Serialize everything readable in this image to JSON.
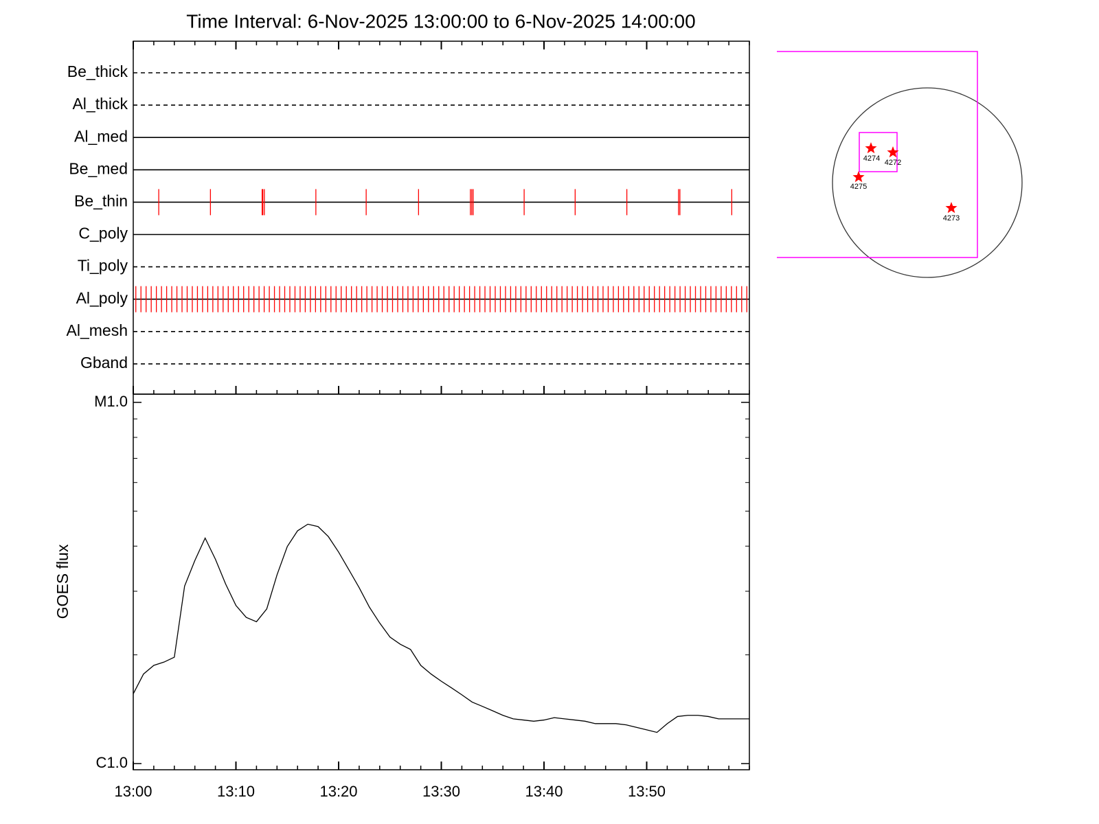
{
  "chart_data": [
    {
      "type": "event",
      "title": "Time Interval:  6-Nov-2025 13:00:00 to  6-Nov-2025 14:00:00",
      "categories": [
        "Be_thick",
        "Al_thick",
        "Al_med",
        "Be_med",
        "Be_thin",
        "C_poly",
        "Ti_poly",
        "Al_poly",
        "Al_mesh",
        "Gband"
      ],
      "line_styles": [
        "dashed",
        "dashed",
        "solid",
        "solid",
        "solid",
        "solid",
        "dashed",
        "solid",
        "dashed",
        "dashed"
      ],
      "color": "#ff0000",
      "xlim": [
        "13:00",
        "14:00"
      ],
      "exposures": [
        [],
        [],
        [],
        [],
        [
          "13:02:29",
          "13:07:31",
          "13:12:33",
          "13:12:37",
          "13:12:46",
          "13:17:47",
          "13:22:41",
          "13:27:47",
          "13:32:50",
          "13:32:58",
          "13:33:06",
          "13:38:04",
          "13:43:02",
          "13:48:04",
          "13:53:06",
          "13:53:14",
          "13:58:17"
        ],
        [],
        [],
        [
          "13:00:15",
          "13:00:45",
          "13:01:15",
          "13:01:45",
          "13:02:15",
          "13:02:45",
          "13:03:15",
          "13:03:45",
          "13:04:15",
          "13:04:45",
          "13:05:15",
          "13:05:45",
          "13:06:15",
          "13:06:45",
          "13:07:15",
          "13:07:45",
          "13:08:15",
          "13:08:45",
          "13:09:15",
          "13:09:45",
          "13:10:15",
          "13:10:45",
          "13:11:15",
          "13:11:45",
          "13:12:15",
          "13:12:45",
          "13:13:15",
          "13:13:45",
          "13:14:15",
          "13:14:45",
          "13:15:15",
          "13:15:45",
          "13:16:15",
          "13:16:45",
          "13:17:15",
          "13:17:45",
          "13:18:15",
          "13:18:45",
          "13:19:15",
          "13:19:45",
          "13:20:15",
          "13:20:45",
          "13:21:15",
          "13:21:45",
          "13:22:15",
          "13:22:45",
          "13:23:15",
          "13:23:45",
          "13:24:15",
          "13:24:45",
          "13:25:15",
          "13:25:45",
          "13:26:15",
          "13:26:45",
          "13:27:15",
          "13:27:45",
          "13:28:15",
          "13:28:45",
          "13:29:15",
          "13:29:45",
          "13:30:15",
          "13:30:45",
          "13:31:15",
          "13:31:45",
          "13:32:15",
          "13:32:45",
          "13:33:15",
          "13:33:45",
          "13:34:15",
          "13:34:45",
          "13:35:15",
          "13:35:45",
          "13:36:15",
          "13:36:45",
          "13:37:15",
          "13:37:45",
          "13:38:15",
          "13:38:45",
          "13:39:15",
          "13:39:45",
          "13:40:15",
          "13:40:45",
          "13:41:15",
          "13:41:45",
          "13:42:15",
          "13:42:45",
          "13:43:15",
          "13:43:45",
          "13:44:15",
          "13:44:45",
          "13:45:15",
          "13:45:45",
          "13:46:15",
          "13:46:45",
          "13:47:15",
          "13:47:45",
          "13:48:15",
          "13:48:45",
          "13:49:15",
          "13:49:45",
          "13:50:15",
          "13:50:45",
          "13:51:15",
          "13:51:45",
          "13:52:15",
          "13:52:45",
          "13:53:15",
          "13:53:45",
          "13:54:15",
          "13:54:45",
          "13:55:15",
          "13:55:45",
          "13:56:15",
          "13:56:45",
          "13:57:15",
          "13:57:45",
          "13:58:15",
          "13:58:45",
          "13:59:15",
          "13:59:45"
        ],
        [],
        []
      ]
    },
    {
      "type": "line",
      "y_label": "GOES flux",
      "color": "#000000",
      "log_scale": true,
      "x": [
        "13:00",
        "13:01",
        "13:02",
        "13:03",
        "13:04",
        "13:05",
        "13:06",
        "13:07",
        "13:08",
        "13:09",
        "13:10",
        "13:11",
        "13:12",
        "13:13",
        "13:14",
        "13:15",
        "13:16",
        "13:17",
        "13:18",
        "13:19",
        "13:20",
        "13:21",
        "13:22",
        "13:23",
        "13:24",
        "13:25",
        "13:26",
        "13:27",
        "13:28",
        "13:29",
        "13:30",
        "13:31",
        "13:32",
        "13:33",
        "13:34",
        "13:35",
        "13:36",
        "13:37",
        "13:38",
        "13:39",
        "13:40",
        "13:41",
        "13:42",
        "13:43",
        "13:44",
        "13:45",
        "13:46",
        "13:47",
        "13:48",
        "13:49",
        "13:50",
        "13:51",
        "13:52",
        "13:53",
        "13:54",
        "13:55",
        "13:56",
        "13:57",
        "13:58",
        "13:59",
        "14:00"
      ],
      "values": [
        1.56e-06,
        1.77e-06,
        1.87e-06,
        1.91e-06,
        1.97e-06,
        3.1e-06,
        3.65e-06,
        4.21e-06,
        3.68e-06,
        3.14e-06,
        2.74e-06,
        2.54e-06,
        2.47e-06,
        2.68e-06,
        3.33e-06,
        3.99e-06,
        4.41e-06,
        4.6e-06,
        4.53e-06,
        4.25e-06,
        3.85e-06,
        3.44e-06,
        3.07e-06,
        2.71e-06,
        2.45e-06,
        2.24e-06,
        2.14e-06,
        2.07e-06,
        1.87e-06,
        1.77e-06,
        1.69e-06,
        1.62e-06,
        1.55e-06,
        1.48e-06,
        1.44e-06,
        1.4e-06,
        1.36e-06,
        1.33e-06,
        1.32e-06,
        1.31e-06,
        1.32e-06,
        1.34e-06,
        1.33e-06,
        1.32e-06,
        1.31e-06,
        1.29e-06,
        1.29e-06,
        1.29e-06,
        1.28e-06,
        1.26e-06,
        1.24e-06,
        1.22e-06,
        1.29e-06,
        1.35e-06,
        1.36e-06,
        1.36e-06,
        1.35e-06,
        1.33e-06,
        1.33e-06,
        1.33e-06,
        1.33e-06
      ],
      "xlim": [
        "13:00",
        "14:00"
      ],
      "xticks": [
        "13:00",
        "13:10",
        "13:20",
        "13:30",
        "13:40",
        "13:50"
      ],
      "ylim": [
        1e-06,
        1e-05
      ],
      "yticks": [
        {
          "value": 1e-06,
          "label": "C1.0"
        },
        {
          "value": 1e-05,
          "label": "M1.0"
        }
      ]
    }
  ],
  "sun_map": {
    "regions": [
      "4274",
      "4272",
      "4275",
      "4273"
    ]
  }
}
